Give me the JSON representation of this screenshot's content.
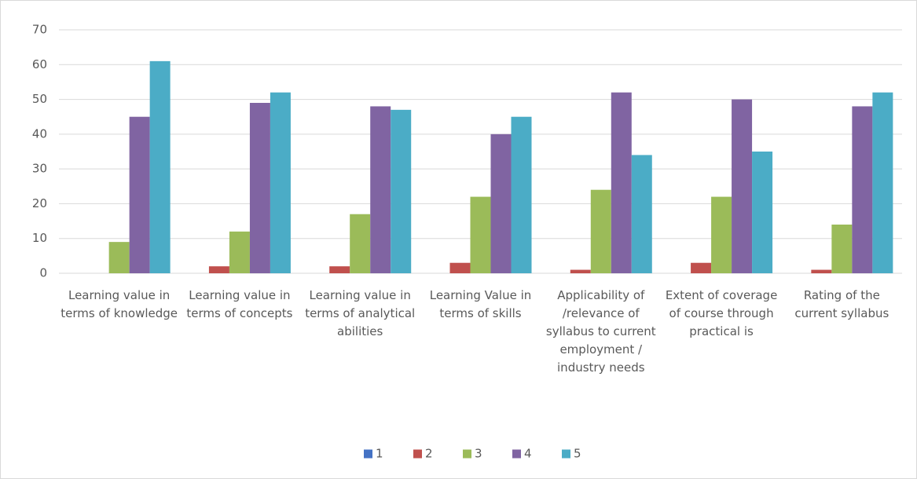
{
  "chart_data": {
    "type": "bar",
    "categories": [
      "Learning value in terms of knowledge",
      "Learning value in terms of concepts",
      "Learning value in terms of analytical abilities",
      "Learning Value in terms of skills",
      "Applicability of /relevance of syllabus to current employment / industry needs",
      "Extent of coverage of course through practical is",
      "Rating of the current syllabus"
    ],
    "series": [
      {
        "name": "1",
        "color": "#4472c4",
        "values": [
          0,
          0,
          0,
          0,
          0,
          0,
          0
        ]
      },
      {
        "name": "2",
        "color": "#c0504d",
        "values": [
          0,
          2,
          2,
          3,
          1,
          3,
          1
        ]
      },
      {
        "name": "3",
        "color": "#9bbb59",
        "values": [
          9,
          12,
          17,
          22,
          24,
          22,
          14
        ]
      },
      {
        "name": "4",
        "color": "#8064a2",
        "values": [
          45,
          49,
          48,
          40,
          52,
          50,
          48
        ]
      },
      {
        "name": "5",
        "color": "#4bacc6",
        "values": [
          61,
          52,
          47,
          45,
          34,
          35,
          52
        ]
      }
    ],
    "ylim": [
      0,
      70
    ],
    "yticks": [
      0,
      10,
      20,
      30,
      40,
      50,
      60,
      70
    ],
    "grid": true,
    "legend": "bottom"
  }
}
